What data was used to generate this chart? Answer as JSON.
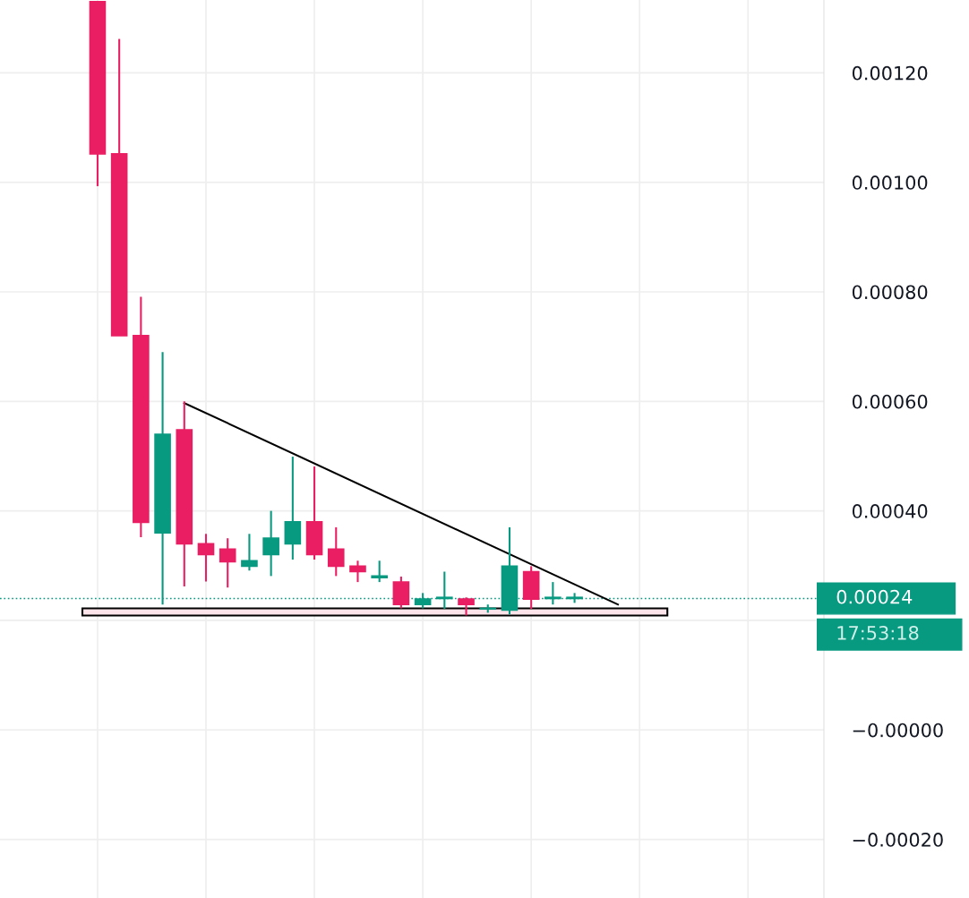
{
  "chart_data": {
    "type": "candlestick",
    "categories": [
      null,
      null,
      null,
      null,
      null,
      null,
      null,
      null,
      null,
      null,
      null,
      null,
      null,
      null,
      null,
      null,
      null,
      null,
      null,
      null,
      null,
      null,
      null,
      null,
      null,
      null,
      null,
      null,
      null,
      null,
      null,
      null,
      null,
      null,
      null,
      null,
      null,
      null
    ],
    "ohlc": [
      null,
      null,
      null,
      null,
      [
        0.00133,
        0.00133,
        0.000993,
        0.001052
      ],
      [
        0.001052,
        0.001262,
        0.00072,
        0.00072
      ],
      [
        0.00072,
        0.000791,
        0.000352,
        0.000379
      ],
      [
        0.00036,
        0.00069,
        0.000229,
        0.00054
      ],
      [
        0.000548,
        0.0006,
        0.000262,
        0.00034
      ],
      [
        0.00034,
        0.000358,
        0.000271,
        0.00032
      ],
      [
        0.00033,
        0.00035,
        0.00026,
        0.000307
      ],
      [
        0.000299,
        0.000358,
        0.000291,
        0.000309
      ],
      [
        0.00032,
        0.0004,
        0.000281,
        0.00035
      ],
      [
        0.00034,
        0.000499,
        0.000311,
        0.00038
      ],
      [
        0.00038,
        0.000481,
        0.000311,
        0.00032
      ],
      [
        0.00033,
        0.00037,
        0.000281,
        0.000299
      ],
      [
        0.000299,
        0.000309,
        0.00027,
        0.000289
      ],
      [
        0.000278,
        0.000309,
        0.00027,
        0.000281
      ],
      [
        0.00027,
        0.00028,
        0.000222,
        0.000229
      ],
      [
        0.000229,
        0.00025,
        0.000222,
        0.000239
      ],
      [
        0.00024,
        0.000289,
        0.000221,
        0.000242
      ],
      [
        0.000239,
        0.000242,
        0.000209,
        0.000229
      ],
      [
        0.000221,
        0.000229,
        0.000214,
        0.000222
      ],
      [
        0.000219,
        0.00037,
        0.000211,
        0.000299
      ],
      [
        0.000289,
        0.000299,
        0.000221,
        0.000239
      ],
      [
        0.00024,
        0.00027,
        0.000229,
        0.000242
      ],
      [
        0.00024,
        0.00025,
        0.000232,
        0.000242
      ],
      null,
      null,
      null,
      null,
      null,
      null,
      null,
      null,
      null,
      null,
      null
    ],
    "colors": [
      null,
      null,
      null,
      null,
      "#e91e63",
      "#e91e63",
      "#e91e63",
      "#089981",
      "#e91e63",
      "#e91e63",
      "#e91e63",
      "#089981",
      "#089981",
      "#089981",
      "#e91e63",
      "#e91e63",
      "#e91e63",
      "#089981",
      "#e91e63",
      "#089981",
      "#089981",
      "#e91e63",
      "#089981",
      "#089981",
      "#e91e63",
      "#089981",
      "#089981",
      null,
      null,
      null,
      null,
      null,
      null,
      null,
      null,
      null,
      null,
      null
    ],
    "series": [
      {
        "type": "line",
        "values": [
          null,
          null,
          null,
          null,
          null,
          null,
          null,
          null,
          0.000597,
          null,
          null,
          null,
          null,
          null,
          null,
          null,
          null,
          null,
          null,
          null,
          null,
          null,
          null,
          null,
          null,
          null,
          null,
          null,
          0.000229,
          null,
          null,
          null,
          null,
          null,
          null,
          null,
          null,
          null
        ],
        "color": "#000000"
      }
    ],
    "ref_lines": [
      {
        "axis": "y",
        "value": 0.00024,
        "label": "0.00024",
        "color": "#089981",
        "line_style": "dotted"
      }
    ],
    "bands": [
      {
        "axis": "y",
        "from": 0.000209,
        "to": 0.000222,
        "color": "#fde4ea"
      }
    ],
    "annotations": [
      "17:53:18"
    ],
    "ylim": [
      -0.000307,
      0.001333
    ],
    "yticks": [
      {
        "value": -0.0002,
        "label": "−0.00020"
      },
      {
        "value": 0,
        "label": "−0.00000"
      },
      {
        "value": 0.0002,
        "label": null
      },
      {
        "value": 0.0004,
        "label": "0.00040"
      },
      {
        "value": 0.0006,
        "label": "0.00060"
      },
      {
        "value": 0.0008,
        "label": "0.00080"
      },
      {
        "value": 0.001,
        "label": "0.00100"
      },
      {
        "value": 0.0012,
        "label": "0.00120"
      }
    ],
    "tick_labels": "y",
    "grid": true
  }
}
